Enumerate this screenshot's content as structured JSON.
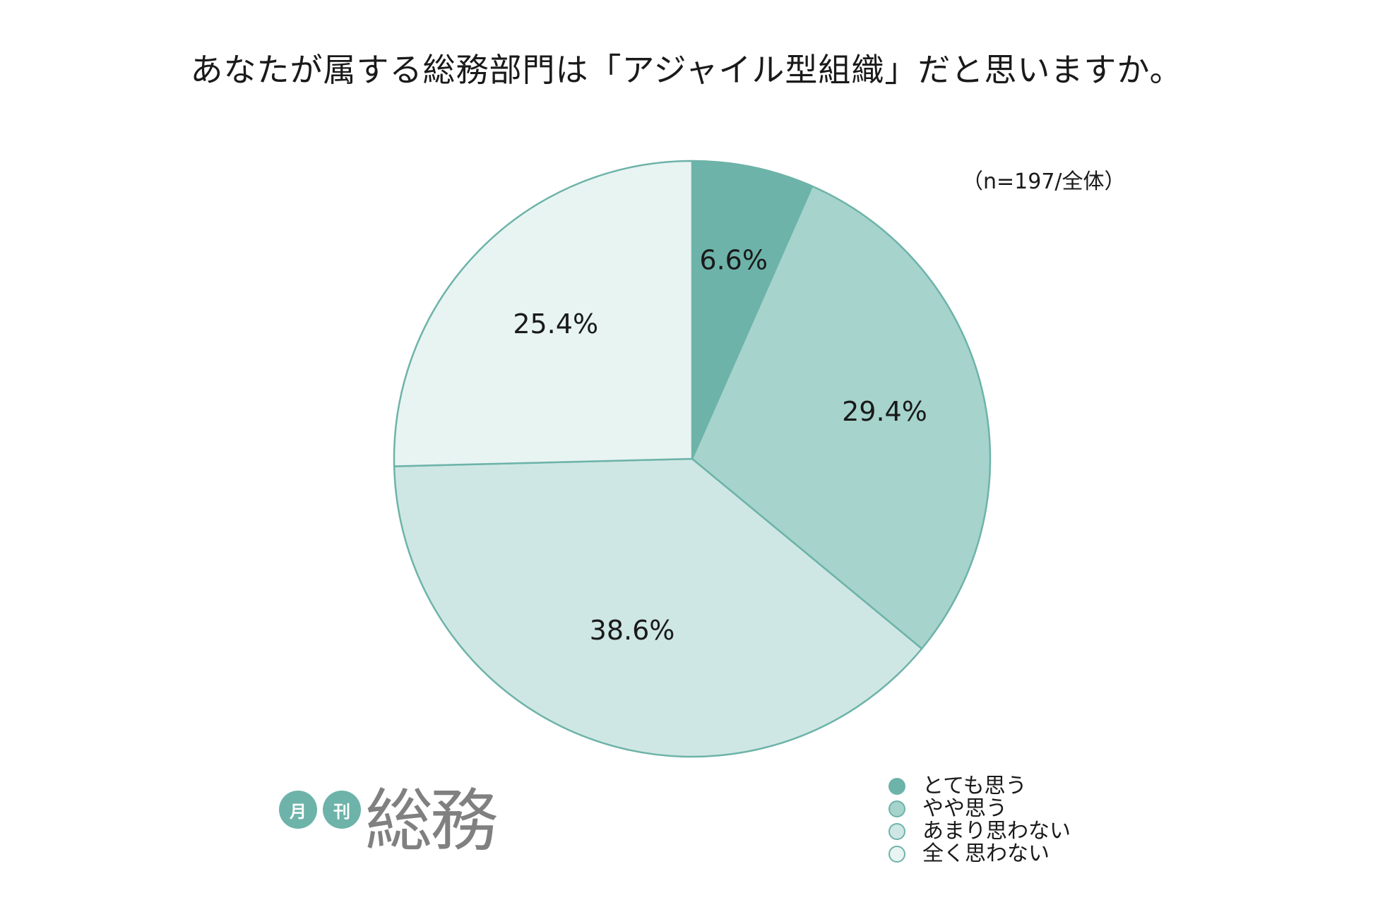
{
  "title": "あなたが属する総務部門は「アジャイル型組織」だと思いますか。",
  "sample_note": "（n=197/全体）",
  "logo": {
    "circle1": "月",
    "circle2": "刊",
    "main": "総務",
    "accent_color": "#6db3a9"
  },
  "chart_data": {
    "type": "pie",
    "title": "あなたが属する総務部門は「アジャイル型組織」だと思いますか。",
    "categories": [
      "とても思う",
      "やや思う",
      "あまり思わない",
      "全く思わない"
    ],
    "values": [
      6.6,
      29.4,
      38.6,
      25.4
    ],
    "value_labels": [
      "6.6%",
      "29.4%",
      "38.6%",
      "25.4%"
    ],
    "colors": [
      "#6db3a9",
      "#a6d3cc",
      "#cfe7e4",
      "#e8f4f2"
    ],
    "border_color": "#6db3a9",
    "start": "12 o'clock, clockwise",
    "legend_position": "bottom-right"
  }
}
